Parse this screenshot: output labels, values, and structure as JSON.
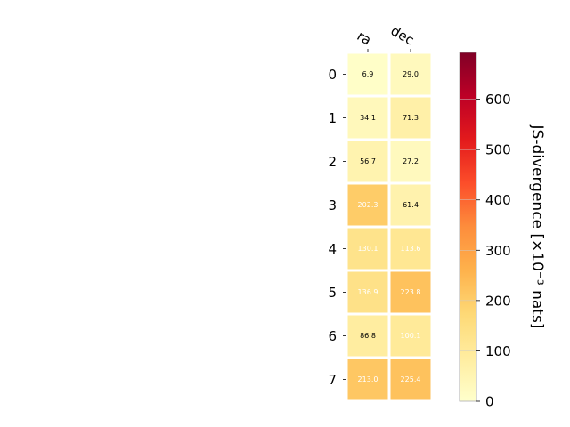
{
  "chart_data": {
    "type": "heatmap",
    "x_categories": [
      "ra",
      "dec"
    ],
    "y_categories": [
      "0",
      "1",
      "2",
      "3",
      "4",
      "5",
      "6",
      "7"
    ],
    "values": [
      [
        6.9,
        29.0
      ],
      [
        34.1,
        71.3
      ],
      [
        56.7,
        27.2
      ],
      [
        202.3,
        61.4
      ],
      [
        130.1,
        113.6
      ],
      [
        136.9,
        223.8
      ],
      [
        86.8,
        100.1
      ],
      [
        213.0,
        225.4
      ]
    ],
    "value_labels": [
      [
        "6.9",
        "29.0"
      ],
      [
        "34.1",
        "71.3"
      ],
      [
        "56.7",
        "27.2"
      ],
      [
        "202.3",
        "61.4"
      ],
      [
        "130.1",
        "113.6"
      ],
      [
        "136.9",
        "223.8"
      ],
      [
        "86.8",
        "100.1"
      ],
      [
        "213.0",
        "225.4"
      ]
    ],
    "colorbar": {
      "label": "JS-divergence [×10⁻³ nats]",
      "range": [
        0,
        693
      ],
      "ticks": [
        "0",
        "100",
        "200",
        "300",
        "400",
        "500",
        "600"
      ],
      "tick_values": [
        0,
        100,
        200,
        300,
        400,
        500,
        600
      ],
      "colormap": "YlOrRd"
    },
    "title": "",
    "xlabel": "",
    "ylabel": ""
  }
}
